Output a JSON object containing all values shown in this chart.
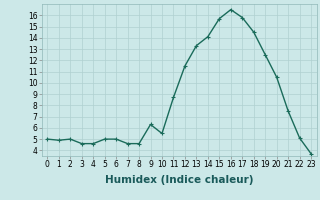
{
  "x": [
    0,
    1,
    2,
    3,
    4,
    5,
    6,
    7,
    8,
    9,
    10,
    11,
    12,
    13,
    14,
    15,
    16,
    17,
    18,
    19,
    20,
    21,
    22,
    23
  ],
  "y": [
    5.0,
    4.9,
    5.0,
    4.6,
    4.6,
    5.0,
    5.0,
    4.6,
    4.6,
    6.3,
    5.5,
    8.7,
    11.5,
    13.3,
    14.1,
    15.7,
    16.5,
    15.8,
    14.5,
    12.5,
    10.5,
    7.5,
    5.1,
    3.7
  ],
  "line_color": "#1a6b5a",
  "marker": "+",
  "marker_size": 3,
  "bg_color": "#cce8e8",
  "grid_color": "#b0d0d0",
  "xlabel": "Humidex (Indice chaleur)",
  "xlim": [
    -0.5,
    23.5
  ],
  "ylim": [
    3.5,
    17.0
  ],
  "yticks": [
    4,
    5,
    6,
    7,
    8,
    9,
    10,
    11,
    12,
    13,
    14,
    15,
    16
  ],
  "xticks": [
    0,
    1,
    2,
    3,
    4,
    5,
    6,
    7,
    8,
    9,
    10,
    11,
    12,
    13,
    14,
    15,
    16,
    17,
    18,
    19,
    20,
    21,
    22,
    23
  ],
  "tick_label_fontsize": 5.5,
  "xlabel_fontsize": 7.5,
  "line_width": 1.0
}
